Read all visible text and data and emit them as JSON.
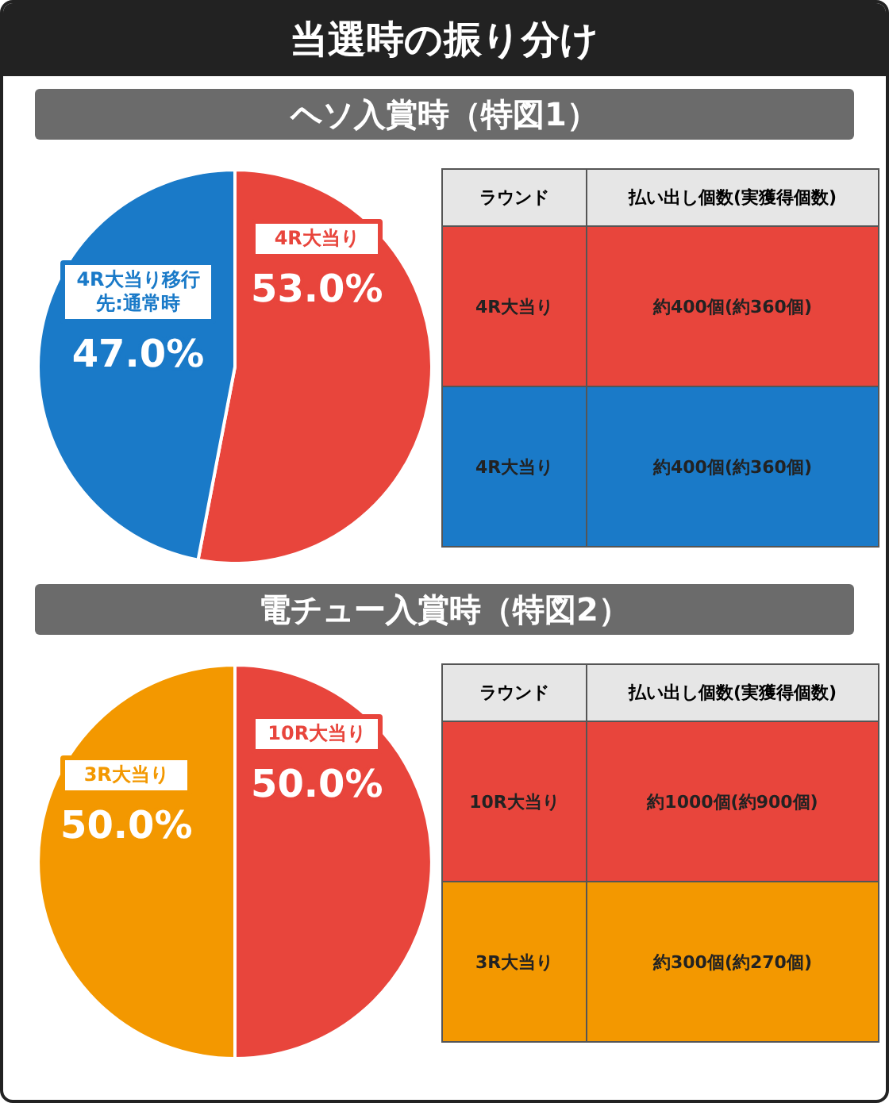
{
  "chart_data": [
    {
      "type": "pie",
      "title": "当選時の振り分け",
      "subtitle": "ヘソ入賞時（特図1）",
      "categories": [
        "4R大当り",
        "4R大当り移行先:通常時"
      ],
      "values": [
        53.0,
        47.0
      ],
      "colors": [
        "#e8453c",
        "#1a7ac8"
      ],
      "value_labels": [
        "53.0%",
        "47.0%"
      ],
      "annotations": [
        "ラウンド",
        "払い出し個数(実獲得個数)",
        "4R大当り",
        "約400個(約360個)",
        "4R大当り",
        "約400個(約360個)"
      ]
    },
    {
      "type": "pie",
      "subtitle": "電チュー入賞時（特図2）",
      "categories": [
        "10R大当り",
        "3R大当り"
      ],
      "values": [
        50.0,
        50.0
      ],
      "colors": [
        "#e8453c",
        "#f39800"
      ],
      "value_labels": [
        "50.0%",
        "50.0%"
      ],
      "annotations": [
        "ラウンド",
        "払い出し個数(実獲得個数)",
        "10R大当り",
        "約1000個(約900個)",
        "3R大当り",
        "約300個(約270個)"
      ]
    }
  ]
}
